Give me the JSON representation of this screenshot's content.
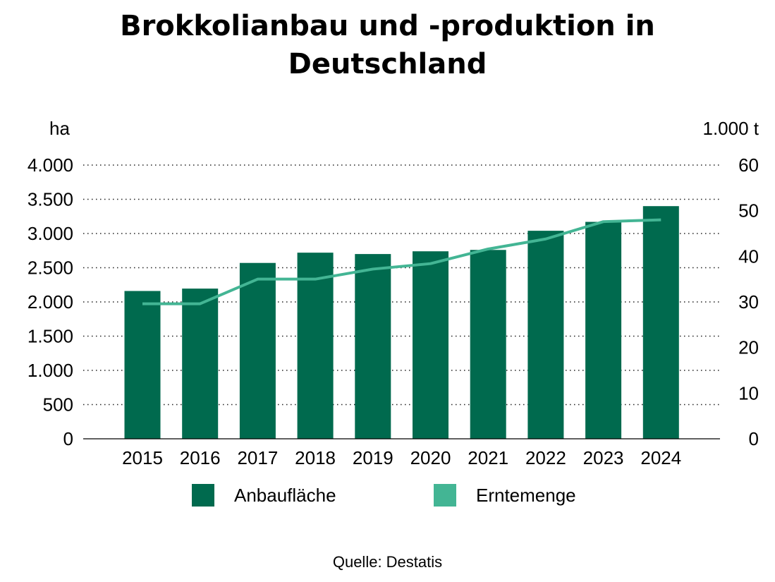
{
  "chart_data": {
    "type": "bar",
    "title_line1": "Brokkolianbau und -produktion in",
    "title_line2": "Deutschland",
    "left_unit": "ha",
    "right_unit": "1.000 t",
    "categories": [
      "2015",
      "2016",
      "2017",
      "2018",
      "2019",
      "2020",
      "2021",
      "2022",
      "2023",
      "2024"
    ],
    "series": [
      {
        "name": "Anbaufläche",
        "kind": "bar",
        "axis": "left",
        "color": "#006a4e",
        "values": [
          2160,
          2195,
          2570,
          2720,
          2700,
          2740,
          2760,
          3040,
          3170,
          3400
        ]
      },
      {
        "name": "Erntemenge",
        "kind": "line",
        "axis": "right",
        "color": "#43b594",
        "values": [
          29.6,
          29.6,
          35.0,
          35.0,
          37.2,
          38.4,
          41.6,
          43.8,
          47.6,
          48.0
        ]
      }
    ],
    "left_axis": {
      "ylim": [
        0,
        4000
      ],
      "ticks": [
        "0",
        "500",
        "1.000",
        "1.500",
        "2.000",
        "2.500",
        "3.000",
        "3.500",
        "4.000"
      ],
      "tick_values": [
        0,
        500,
        1000,
        1500,
        2000,
        2500,
        3000,
        3500,
        4000
      ]
    },
    "right_axis": {
      "ylim": [
        0,
        60
      ],
      "ticks": [
        "0",
        "10",
        "20",
        "30",
        "40",
        "50",
        "60"
      ],
      "tick_values": [
        0,
        10,
        20,
        30,
        40,
        50,
        60
      ]
    },
    "grid": "dotted horizontal",
    "legend_position": "bottom"
  },
  "source": "Quelle: Destatis"
}
